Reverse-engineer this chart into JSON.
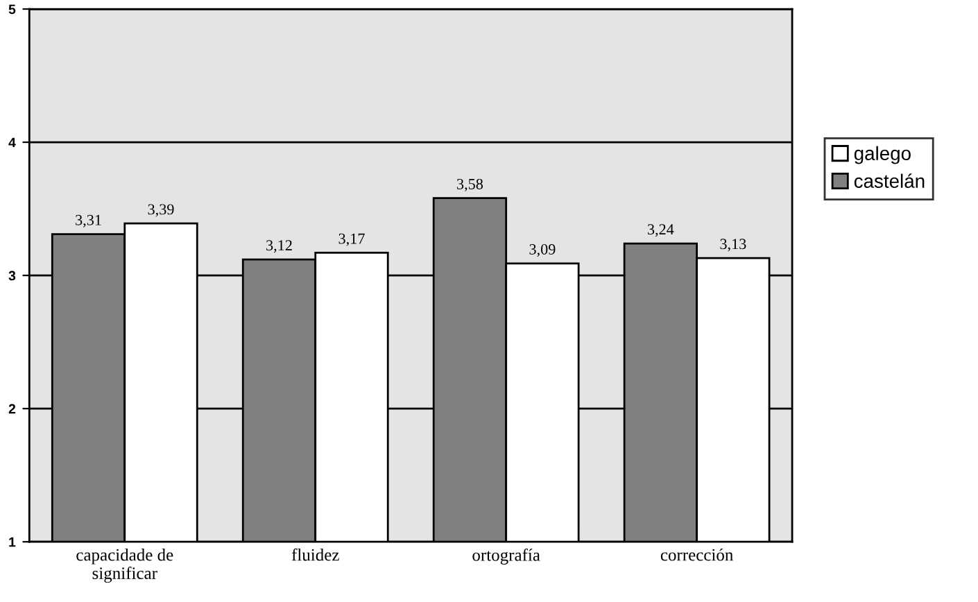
{
  "chart_data": {
    "type": "bar",
    "categories": [
      "capacidade de\nsignificar",
      "fluidez",
      "ortografía",
      "corrección"
    ],
    "series": [
      {
        "name": "castelán",
        "color": "#808080",
        "values": [
          3.31,
          3.12,
          3.58,
          3.24
        ],
        "value_labels": [
          "3,31",
          "3,12",
          "3,58",
          "3,24"
        ]
      },
      {
        "name": "galego",
        "color": "#ffffff",
        "values": [
          3.39,
          3.17,
          3.09,
          3.13
        ],
        "value_labels": [
          "3,39",
          "3,17",
          "3,09",
          "3,13"
        ]
      }
    ],
    "ylim": [
      1,
      5
    ],
    "yticks": [
      1,
      2,
      3,
      4,
      5
    ],
    "grid": "y",
    "legend": "right"
  }
}
